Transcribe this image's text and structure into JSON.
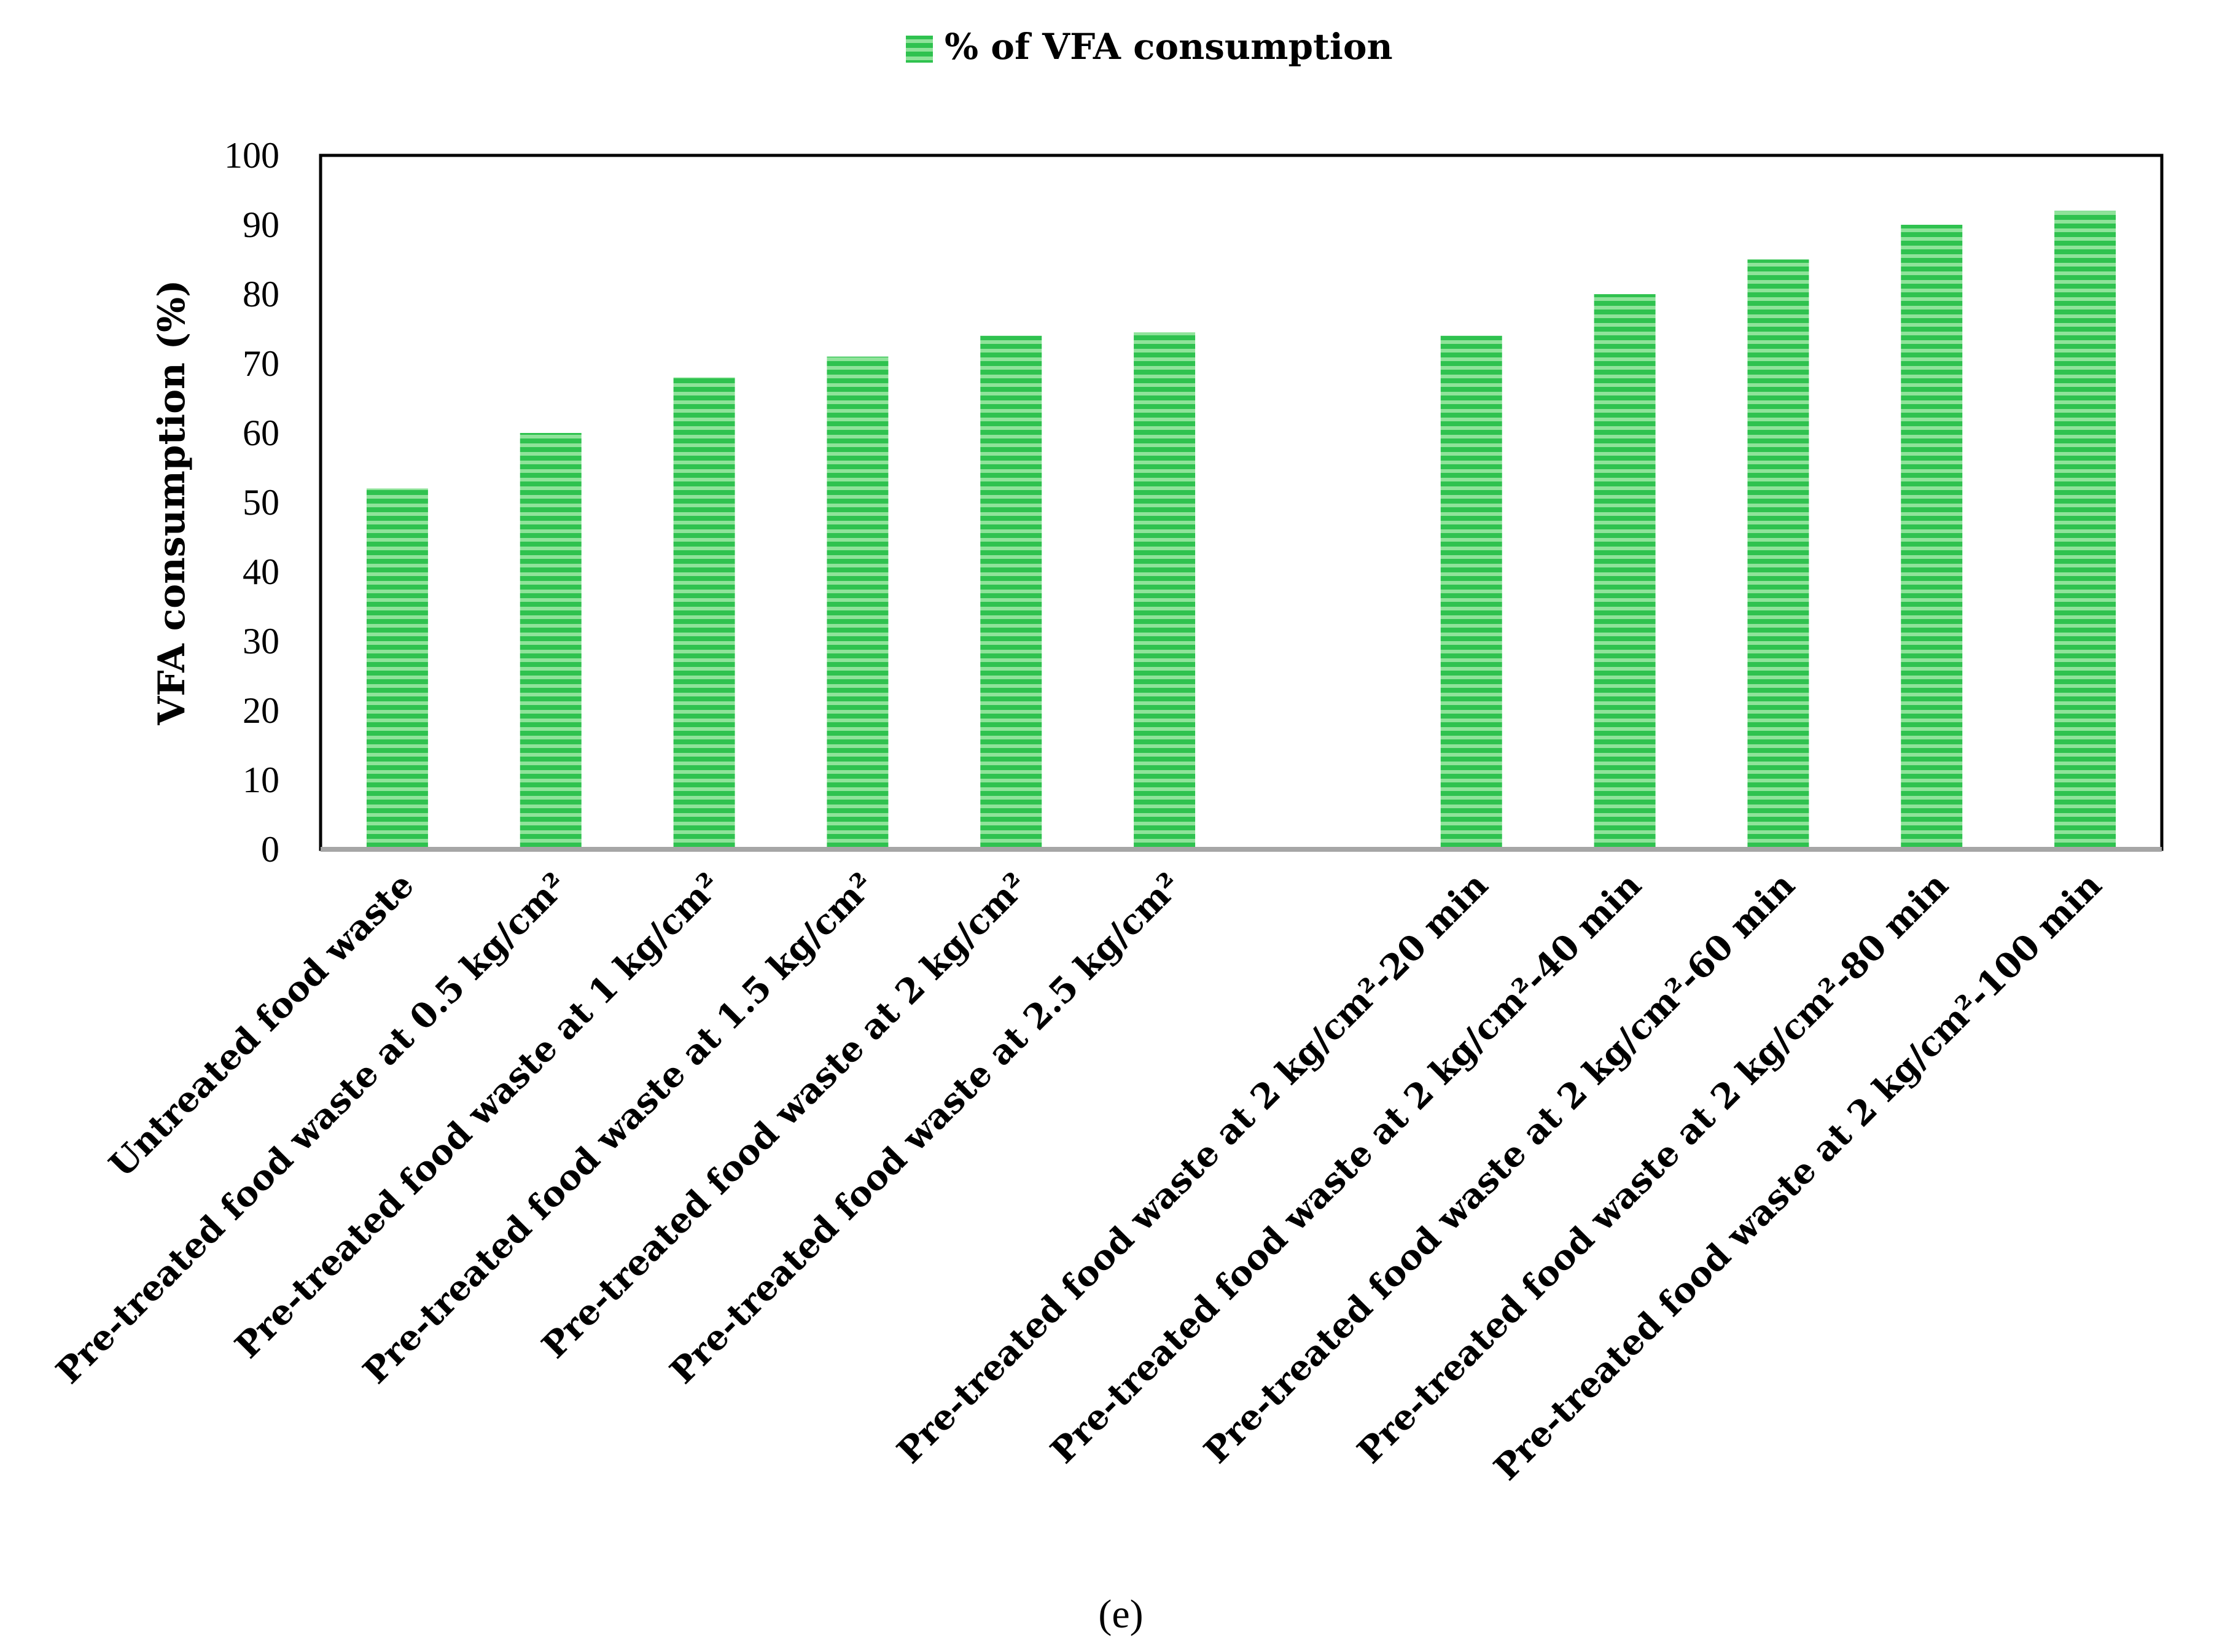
{
  "chart_data": {
    "type": "bar",
    "title": "",
    "legend": {
      "label": "% of VFA consumption",
      "placement": "top-center"
    },
    "ylabel": "VFA consumption (%)",
    "xlabel": "",
    "ylim": [
      0,
      100
    ],
    "yticks": [
      "0",
      "10",
      "20",
      "30",
      "40",
      "50",
      "60",
      "70",
      "80",
      "90",
      "100"
    ],
    "categories": [
      "Untreated food waste",
      "Pre-treated food waste at 0.5 kg/cm²",
      "Pre-treated food waste  at 1 kg/cm²",
      "Pre-treated food waste  at 1.5 kg/cm²",
      "Pre-treated food waste  at 2 kg/cm²",
      "Pre-treated food waste  at 2.5 kg/cm²",
      "",
      "Pre-treated food waste  at 2 kg/cm²-20 min",
      "Pre-treated food waste  at 2 kg/cm²-40 min",
      "Pre-treated food waste  at 2 kg/cm²-60 min",
      "Pre-treated food waste  at 2 kg/cm²-80 min",
      "Pre-treated food waste  at 2 kg/cm²-100 min"
    ],
    "series": [
      {
        "name": "% of VFA consumption",
        "values": [
          52,
          60,
          68,
          71,
          74,
          74.5,
          null,
          74,
          80,
          85,
          90,
          92
        ]
      }
    ],
    "grid": false,
    "colors": {
      "bar_fill": "#2fc24f",
      "bar_stripe": "#8fe39a",
      "axis": "#000000",
      "baseline": "#a6a6a6"
    }
  },
  "caption": "(e)"
}
